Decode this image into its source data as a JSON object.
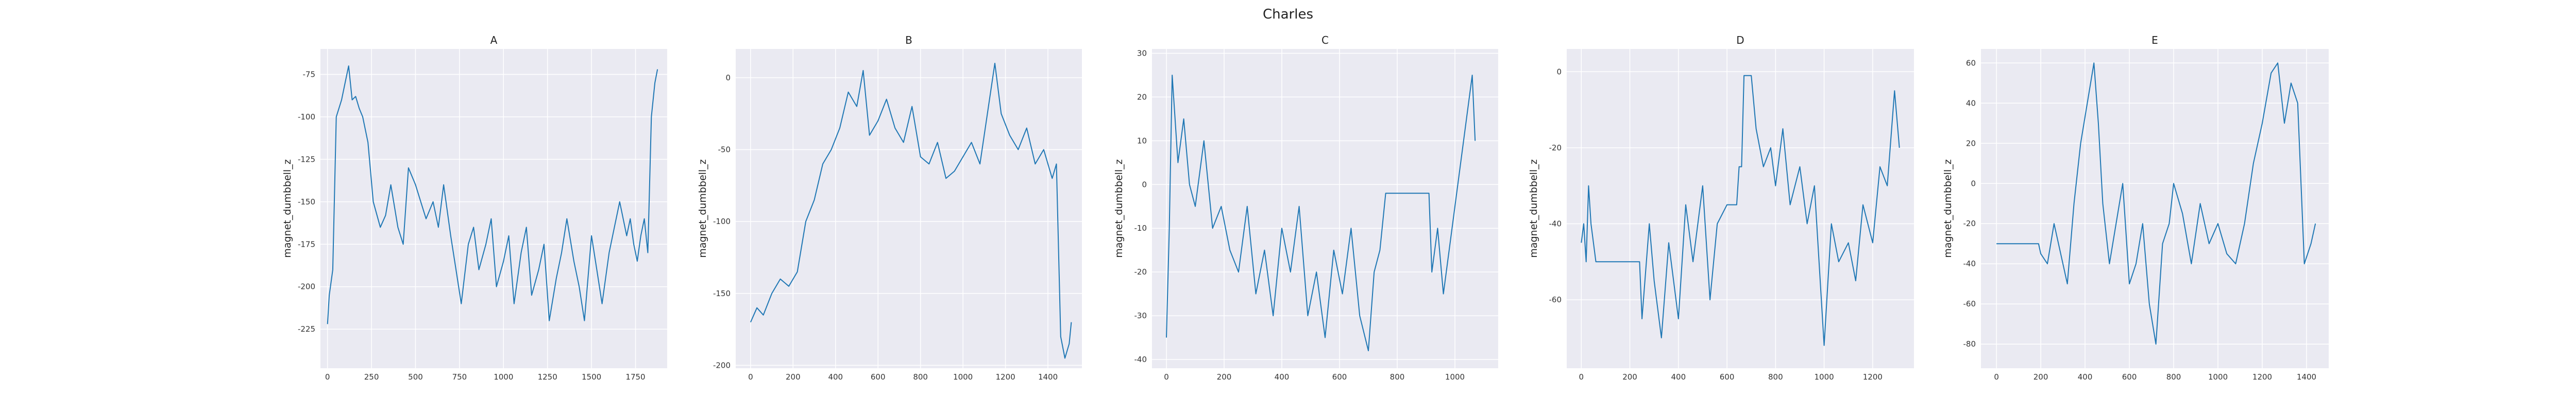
{
  "figure": {
    "suptitle": "Charles"
  },
  "style": {
    "facecolor": "#EAEAF2",
    "grid": "#FFFFFF",
    "line": "#1F77B4"
  },
  "chart_data": [
    {
      "type": "line",
      "title": "A",
      "xlabel": "",
      "ylabel": "magnet_dumbbell_z",
      "xlim": [
        -40,
        1930
      ],
      "ylim": [
        -248,
        -60
      ],
      "xticks": [
        0,
        250,
        500,
        750,
        1000,
        1250,
        1500,
        1750
      ],
      "yticks": [
        -225,
        -200,
        -175,
        -150,
        -125,
        -100,
        -75
      ],
      "series": [
        {
          "x": [
            0,
            10,
            30,
            50,
            80,
            100,
            120,
            140,
            160,
            180,
            200,
            230,
            260,
            300,
            330,
            360,
            400,
            430,
            460,
            500,
            530,
            560,
            600,
            630,
            660,
            700,
            730,
            760,
            800,
            830,
            860,
            900,
            930,
            960,
            1000,
            1030,
            1060,
            1100,
            1130,
            1160,
            1200,
            1230,
            1260,
            1300,
            1330,
            1360,
            1400,
            1430,
            1460,
            1500,
            1530,
            1560,
            1600,
            1630,
            1660,
            1700,
            1720,
            1740,
            1760,
            1780,
            1800,
            1820,
            1840,
            1860,
            1875
          ],
          "y": [
            -222,
            -205,
            -190,
            -100,
            -90,
            -80,
            -70,
            -90,
            -88,
            -95,
            -100,
            -115,
            -150,
            -165,
            -158,
            -140,
            -165,
            -175,
            -130,
            -140,
            -150,
            -160,
            -150,
            -165,
            -140,
            -170,
            -190,
            -210,
            -175,
            -165,
            -190,
            -175,
            -160,
            -200,
            -185,
            -170,
            -210,
            -180,
            -165,
            -205,
            -190,
            -175,
            -220,
            -195,
            -180,
            -160,
            -185,
            -200,
            -220,
            -170,
            -190,
            -210,
            -180,
            -165,
            -150,
            -170,
            -160,
            -175,
            -185,
            -170,
            -160,
            -180,
            -100,
            -80,
            -72
          ]
        }
      ]
    },
    {
      "type": "line",
      "title": "B",
      "xlabel": "",
      "ylabel": "magnet_dumbbell_z",
      "xlim": [
        -70,
        1560
      ],
      "ylim": [
        -202,
        20
      ],
      "xticks": [
        0,
        200,
        400,
        600,
        800,
        1000,
        1200,
        1400
      ],
      "yticks": [
        -200,
        -150,
        -100,
        -50,
        0
      ],
      "series": [
        {
          "x": [
            0,
            30,
            60,
            100,
            140,
            180,
            220,
            260,
            300,
            340,
            380,
            420,
            460,
            500,
            530,
            560,
            600,
            640,
            680,
            720,
            760,
            800,
            840,
            880,
            920,
            960,
            1000,
            1040,
            1080,
            1120,
            1150,
            1180,
            1220,
            1260,
            1300,
            1340,
            1380,
            1420,
            1440,
            1460,
            1480,
            1500,
            1510
          ],
          "y": [
            -170,
            -160,
            -165,
            -150,
            -140,
            -145,
            -135,
            -100,
            -85,
            -60,
            -50,
            -35,
            -10,
            -20,
            5,
            -40,
            -30,
            -15,
            -35,
            -45,
            -20,
            -55,
            -60,
            -45,
            -70,
            -65,
            -55,
            -45,
            -60,
            -20,
            10,
            -25,
            -40,
            -50,
            -35,
            -60,
            -50,
            -70,
            -60,
            -180,
            -195,
            -185,
            -170
          ]
        }
      ]
    },
    {
      "type": "line",
      "title": "C",
      "xlabel": "",
      "ylabel": "magnet_dumbbell_z",
      "xlim": [
        -50,
        1150
      ],
      "ylim": [
        -42,
        31
      ],
      "xticks": [
        0,
        200,
        400,
        600,
        800,
        1000
      ],
      "yticks": [
        -40,
        -30,
        -20,
        -10,
        0,
        10,
        20,
        30
      ],
      "series": [
        {
          "x": [
            0,
            10,
            20,
            40,
            60,
            80,
            100,
            130,
            160,
            190,
            220,
            250,
            280,
            310,
            340,
            370,
            400,
            430,
            460,
            490,
            520,
            550,
            580,
            610,
            640,
            670,
            700,
            720,
            740,
            760,
            800,
            840,
            880,
            910,
            920,
            940,
            960,
            980,
            1000,
            1020,
            1040,
            1060,
            1070
          ],
          "y": [
            -35,
            -10,
            25,
            5,
            15,
            0,
            -5,
            10,
            -10,
            -5,
            -15,
            -20,
            -5,
            -25,
            -15,
            -30,
            -10,
            -20,
            -5,
            -30,
            -20,
            -35,
            -15,
            -25,
            -10,
            -30,
            -38,
            -20,
            -15,
            -2,
            -2,
            -2,
            -2,
            -2,
            -20,
            -10,
            -25,
            -15,
            -5,
            5,
            15,
            25,
            10
          ]
        }
      ]
    },
    {
      "type": "line",
      "title": "D",
      "xlabel": "",
      "ylabel": "magnet_dumbbell_z",
      "xlim": [
        -60,
        1370
      ],
      "ylim": [
        -78,
        6
      ],
      "xticks": [
        0,
        200,
        400,
        600,
        800,
        1000,
        1200
      ],
      "yticks": [
        -60,
        -40,
        -20,
        0
      ],
      "series": [
        {
          "x": [
            0,
            10,
            20,
            30,
            40,
            60,
            100,
            150,
            200,
            240,
            250,
            280,
            300,
            330,
            360,
            400,
            430,
            460,
            500,
            530,
            560,
            600,
            620,
            640,
            650,
            660,
            670,
            680,
            700,
            720,
            750,
            780,
            800,
            830,
            860,
            900,
            930,
            960,
            1000,
            1030,
            1060,
            1100,
            1130,
            1160,
            1200,
            1230,
            1260,
            1290,
            1310
          ],
          "y": [
            -45,
            -40,
            -50,
            -30,
            -40,
            -50,
            -50,
            -50,
            -50,
            -50,
            -65,
            -40,
            -55,
            -70,
            -45,
            -65,
            -35,
            -50,
            -30,
            -60,
            -40,
            -35,
            -35,
            -35,
            -25,
            -25,
            -1,
            -1,
            -1,
            -15,
            -25,
            -20,
            -30,
            -15,
            -35,
            -25,
            -40,
            -30,
            -72,
            -40,
            -50,
            -45,
            -55,
            -35,
            -45,
            -25,
            -30,
            -5,
            -20
          ]
        }
      ]
    },
    {
      "type": "line",
      "title": "E",
      "xlabel": "",
      "ylabel": "magnet_dumbbell_z",
      "xlim": [
        -70,
        1500
      ],
      "ylim": [
        -92,
        67
      ],
      "xticks": [
        0,
        200,
        400,
        600,
        800,
        1000,
        1200,
        1400
      ],
      "yticks": [
        -80,
        -60,
        -40,
        -20,
        0,
        20,
        40,
        60
      ],
      "series": [
        {
          "x": [
            0,
            50,
            100,
            150,
            190,
            200,
            230,
            260,
            290,
            320,
            350,
            380,
            410,
            440,
            460,
            480,
            510,
            540,
            570,
            600,
            630,
            660,
            690,
            720,
            750,
            780,
            800,
            840,
            880,
            920,
            960,
            1000,
            1040,
            1080,
            1120,
            1160,
            1200,
            1240,
            1270,
            1300,
            1330,
            1360,
            1390,
            1420,
            1440
          ],
          "y": [
            -30,
            -30,
            -30,
            -30,
            -30,
            -35,
            -40,
            -20,
            -35,
            -50,
            -10,
            20,
            40,
            60,
            30,
            -10,
            -40,
            -20,
            0,
            -50,
            -40,
            -20,
            -60,
            -80,
            -30,
            -20,
            0,
            -15,
            -40,
            -10,
            -30,
            -20,
            -35,
            -40,
            -20,
            10,
            30,
            55,
            60,
            30,
            50,
            40,
            -40,
            -30,
            -20
          ]
        }
      ]
    }
  ]
}
